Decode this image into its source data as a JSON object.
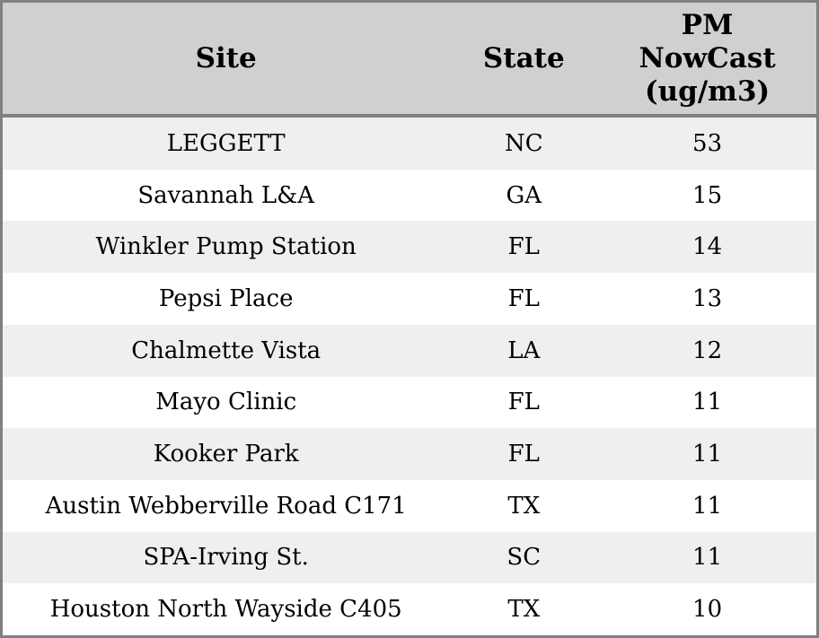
{
  "colors": {
    "header_bg": "#d0d0d0",
    "row_stripe_bg": "#efefef",
    "row_bg": "#ffffff",
    "border": "#808080",
    "text": "#000000"
  },
  "chart_data": {
    "type": "table",
    "title": "",
    "columns": [
      "Site",
      "State",
      "PM NowCast (ug/m3)"
    ],
    "header": {
      "site": "Site",
      "state": "State",
      "pm_lines": [
        "PM",
        "NowCast",
        "(ug/m3)"
      ]
    },
    "rows": [
      {
        "site": "LEGGETT",
        "state": "NC",
        "pm": "53"
      },
      {
        "site": "Savannah L&A",
        "state": "GA",
        "pm": "15"
      },
      {
        "site": "Winkler Pump Station",
        "state": "FL",
        "pm": "14"
      },
      {
        "site": "Pepsi Place",
        "state": "FL",
        "pm": "13"
      },
      {
        "site": "Chalmette Vista",
        "state": "LA",
        "pm": "12"
      },
      {
        "site": "Mayo Clinic",
        "state": "FL",
        "pm": "11"
      },
      {
        "site": "Kooker Park",
        "state": "FL",
        "pm": "11"
      },
      {
        "site": "Austin Webberville Road C171",
        "state": "TX",
        "pm": "11"
      },
      {
        "site": "SPA-Irving St.",
        "state": "SC",
        "pm": "11"
      },
      {
        "site": "Houston North Wayside C405",
        "state": "TX",
        "pm": "10"
      }
    ]
  }
}
